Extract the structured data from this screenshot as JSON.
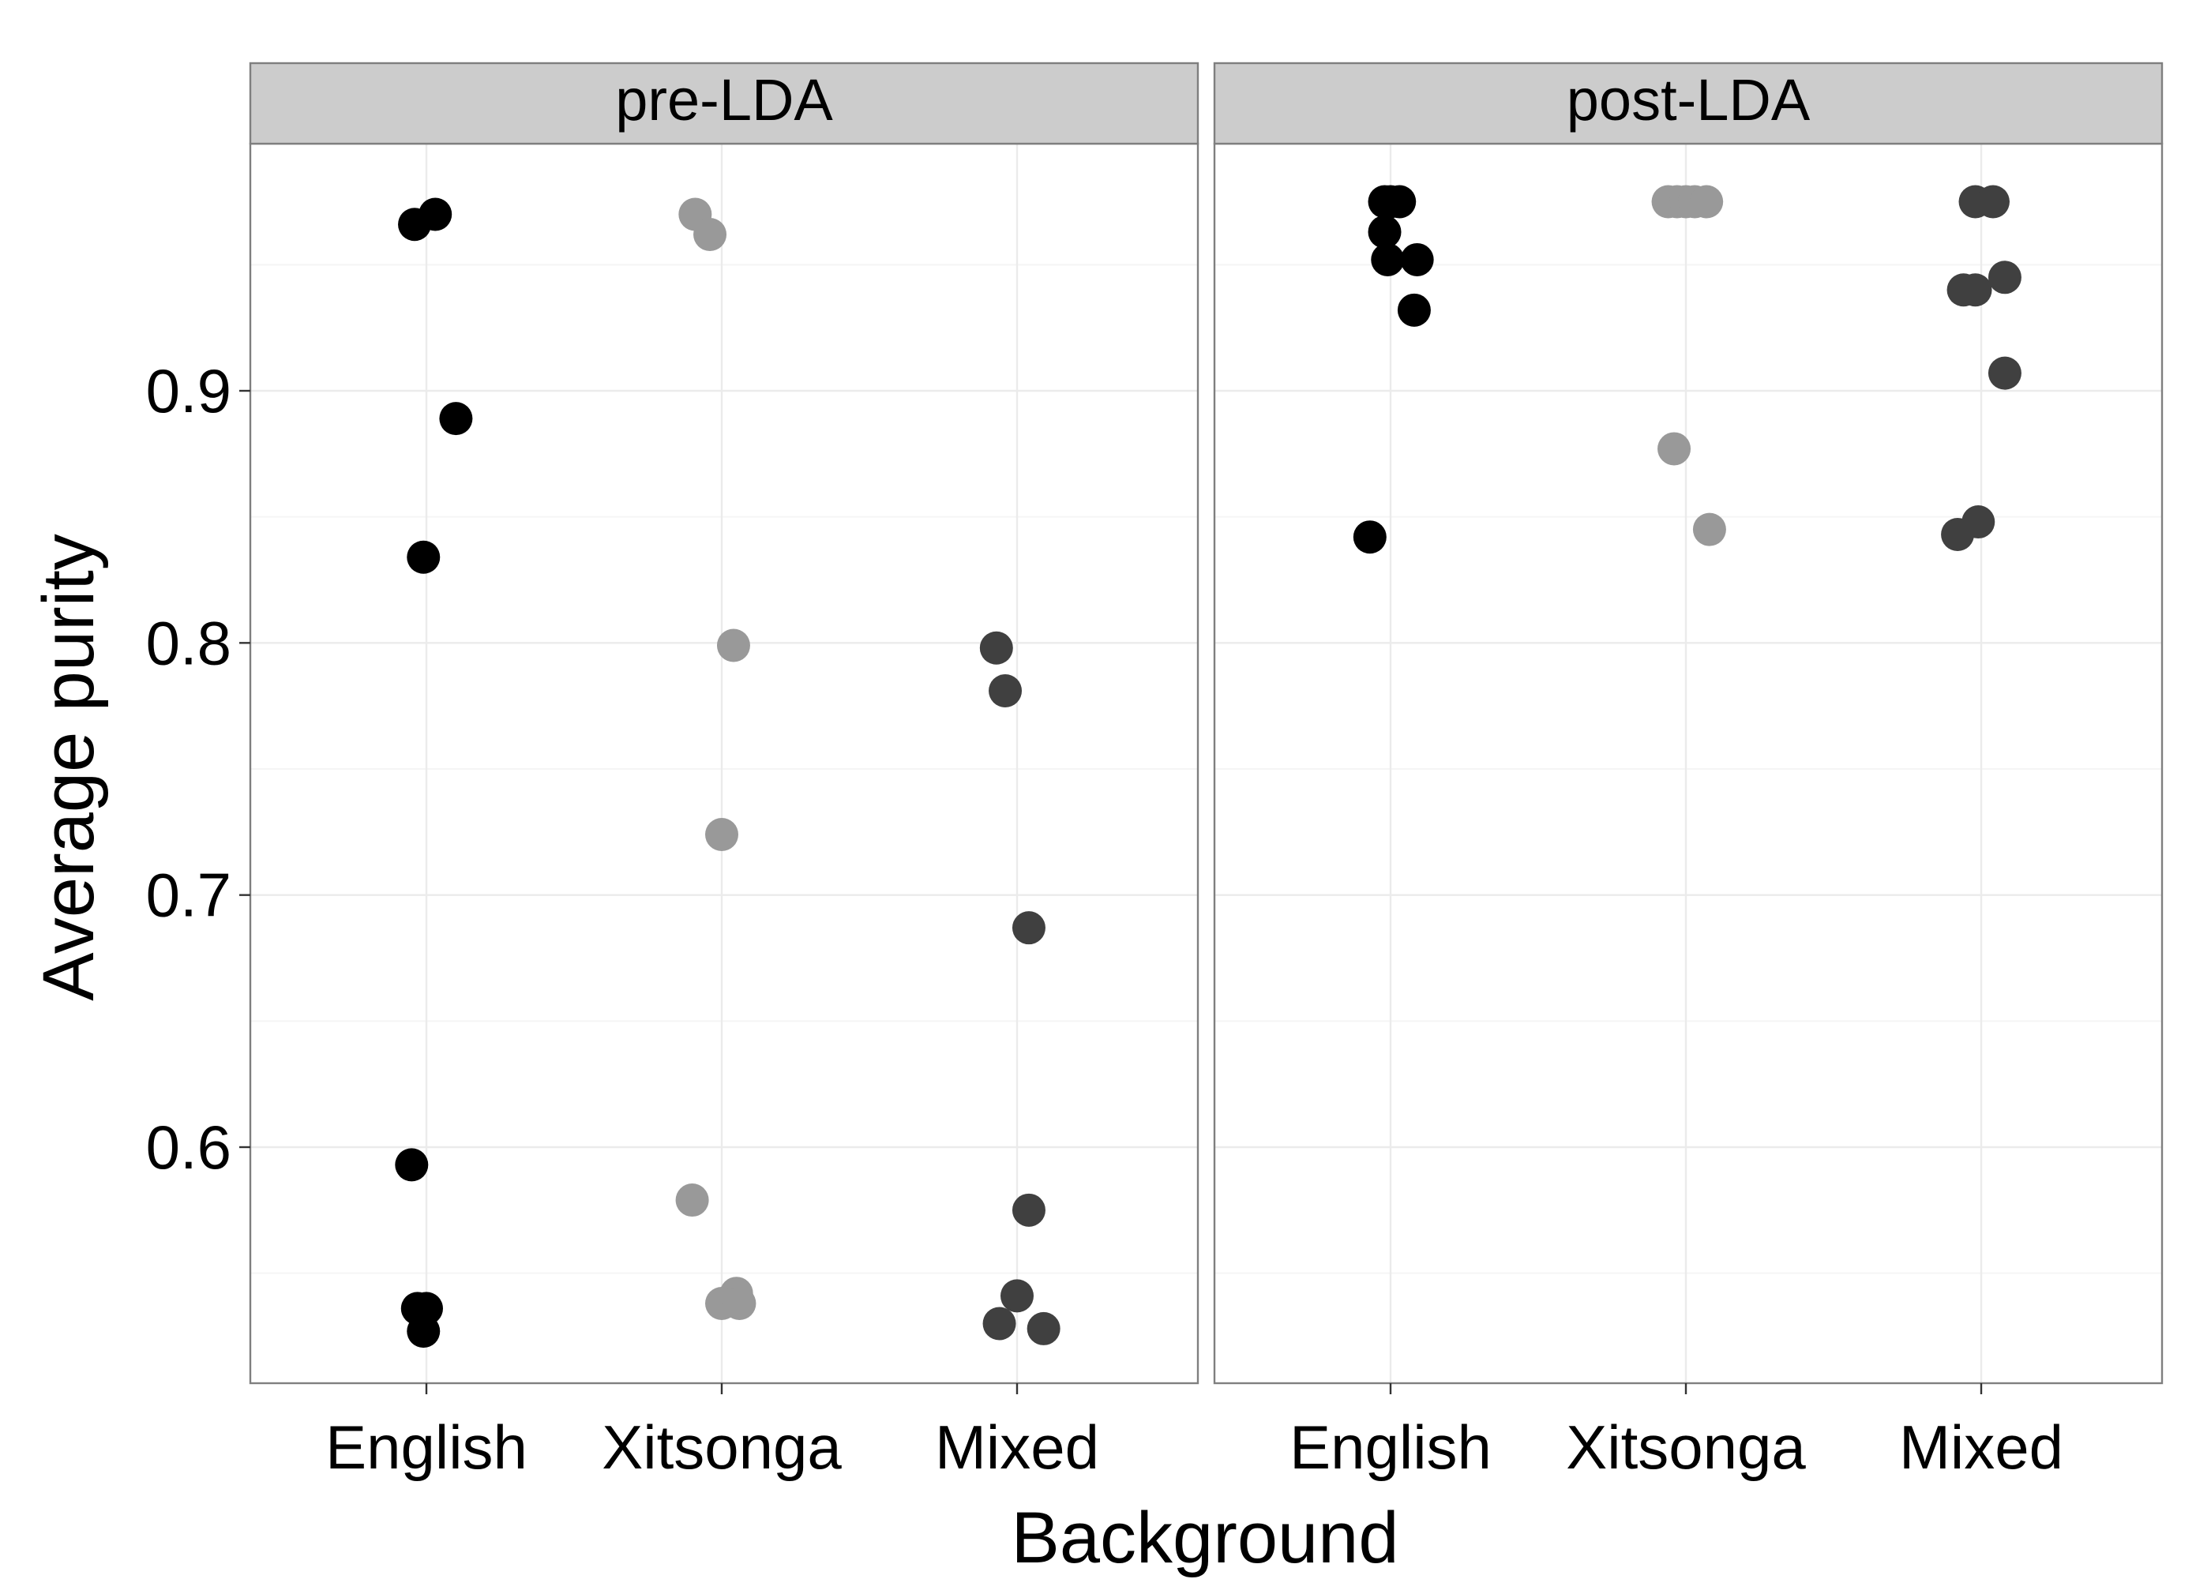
{
  "chart_data": {
    "type": "scatter",
    "ylabel": "Average purity",
    "xlabel": "Background",
    "categories": [
      "English",
      "Xitsonga",
      "Mixed"
    ],
    "yticks": [
      "0.6",
      "0.7",
      "0.8",
      "0.9"
    ],
    "ylim": [
      0.508,
      0.992
    ],
    "grid": true,
    "legend": "none",
    "colors": {
      "English": "#000000",
      "Xitsonga": "#999999",
      "Mixed": "#404040",
      "strip": "#cccccc",
      "panel_border": "#7f7f7f",
      "grid_major": "#ebebeb",
      "grid_minor": "#f5f5f5"
    },
    "panels": [
      {
        "label": "pre-LDA",
        "series": [
          {
            "category": "English",
            "points": [
              {
                "jitter": 0.03,
                "y": 0.97
              },
              {
                "jitter": -0.04,
                "y": 0.966
              },
              {
                "jitter": 0.1,
                "y": 0.889
              },
              {
                "jitter": -0.01,
                "y": 0.834
              },
              {
                "jitter": -0.05,
                "y": 0.593
              },
              {
                "jitter": -0.03,
                "y": 0.536
              },
              {
                "jitter": 0.0,
                "y": 0.536
              },
              {
                "jitter": -0.01,
                "y": 0.527
              }
            ]
          },
          {
            "category": "Xitsonga",
            "points": [
              {
                "jitter": -0.09,
                "y": 0.97
              },
              {
                "jitter": -0.04,
                "y": 0.962
              },
              {
                "jitter": 0.04,
                "y": 0.799
              },
              {
                "jitter": 0.0,
                "y": 0.724
              },
              {
                "jitter": -0.1,
                "y": 0.579
              },
              {
                "jitter": 0.05,
                "y": 0.542
              },
              {
                "jitter": 0.0,
                "y": 0.538
              },
              {
                "jitter": 0.06,
                "y": 0.538
              }
            ]
          },
          {
            "category": "Mixed",
            "points": [
              {
                "jitter": -0.07,
                "y": 0.798
              },
              {
                "jitter": -0.04,
                "y": 0.781
              },
              {
                "jitter": 0.04,
                "y": 0.687
              },
              {
                "jitter": 0.04,
                "y": 0.575
              },
              {
                "jitter": 0.0,
                "y": 0.541
              },
              {
                "jitter": -0.06,
                "y": 0.53
              },
              {
                "jitter": 0.09,
                "y": 0.528
              }
            ]
          }
        ]
      },
      {
        "label": "post-LDA",
        "series": [
          {
            "category": "English",
            "points": [
              {
                "jitter": -0.02,
                "y": 0.975
              },
              {
                "jitter": 0.0,
                "y": 0.975
              },
              {
                "jitter": 0.03,
                "y": 0.975
              },
              {
                "jitter": -0.02,
                "y": 0.963
              },
              {
                "jitter": -0.01,
                "y": 0.952
              },
              {
                "jitter": 0.09,
                "y": 0.952
              },
              {
                "jitter": 0.08,
                "y": 0.932
              },
              {
                "jitter": -0.07,
                "y": 0.842
              }
            ]
          },
          {
            "category": "Xitsonga",
            "points": [
              {
                "jitter": -0.06,
                "y": 0.975
              },
              {
                "jitter": -0.03,
                "y": 0.975
              },
              {
                "jitter": 0.0,
                "y": 0.975
              },
              {
                "jitter": 0.03,
                "y": 0.975
              },
              {
                "jitter": 0.07,
                "y": 0.975
              },
              {
                "jitter": -0.04,
                "y": 0.877
              },
              {
                "jitter": 0.08,
                "y": 0.845
              }
            ]
          },
          {
            "category": "Mixed",
            "points": [
              {
                "jitter": -0.02,
                "y": 0.975
              },
              {
                "jitter": 0.04,
                "y": 0.975
              },
              {
                "jitter": -0.06,
                "y": 0.94
              },
              {
                "jitter": -0.02,
                "y": 0.94
              },
              {
                "jitter": 0.08,
                "y": 0.945
              },
              {
                "jitter": 0.08,
                "y": 0.907
              },
              {
                "jitter": -0.01,
                "y": 0.848
              },
              {
                "jitter": -0.08,
                "y": 0.843
              }
            ]
          }
        ]
      }
    ]
  }
}
